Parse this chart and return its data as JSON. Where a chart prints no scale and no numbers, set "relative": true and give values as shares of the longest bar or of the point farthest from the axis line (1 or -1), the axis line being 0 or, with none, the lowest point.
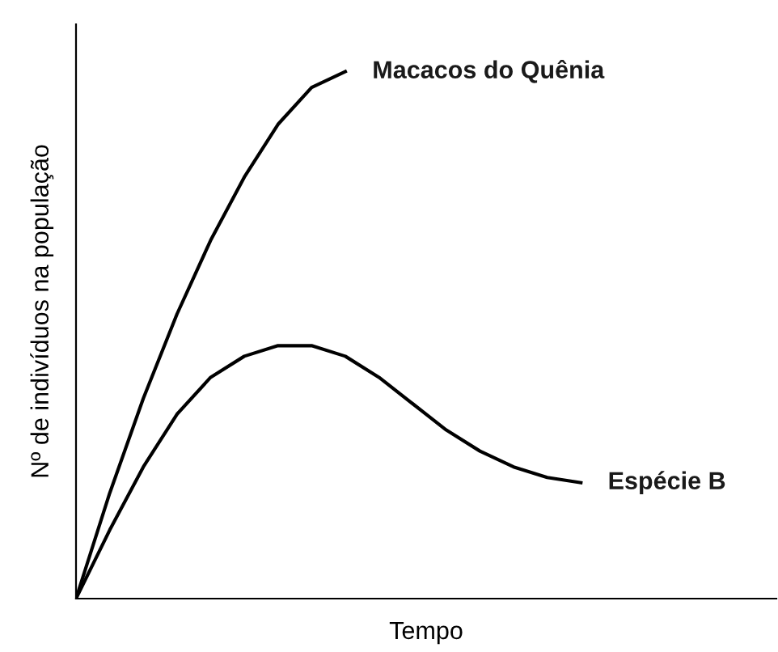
{
  "chart_data": {
    "type": "line",
    "relative": true,
    "xlabel": "Tempo",
    "ylabel": "Nº de indivíduos na população",
    "legend": false,
    "categories": [
      null,
      null,
      null,
      null,
      null,
      null,
      null,
      null,
      null,
      null,
      null,
      null,
      null,
      null,
      null,
      null
    ],
    "series": [
      {
        "name": "Macacos do Quênia",
        "color": "#000000",
        "values": [
          0,
          0.2,
          0.38,
          0.54,
          0.68,
          0.8,
          0.9,
          0.97,
          1.0,
          null,
          null,
          null,
          null,
          null,
          null,
          null
        ]
      },
      {
        "name": "Espécie B",
        "color": "#000000",
        "values": [
          0,
          0.13,
          0.25,
          0.35,
          0.42,
          0.46,
          0.48,
          0.48,
          0.46,
          0.42,
          0.37,
          0.32,
          0.28,
          0.25,
          0.23,
          0.22
        ]
      }
    ]
  }
}
